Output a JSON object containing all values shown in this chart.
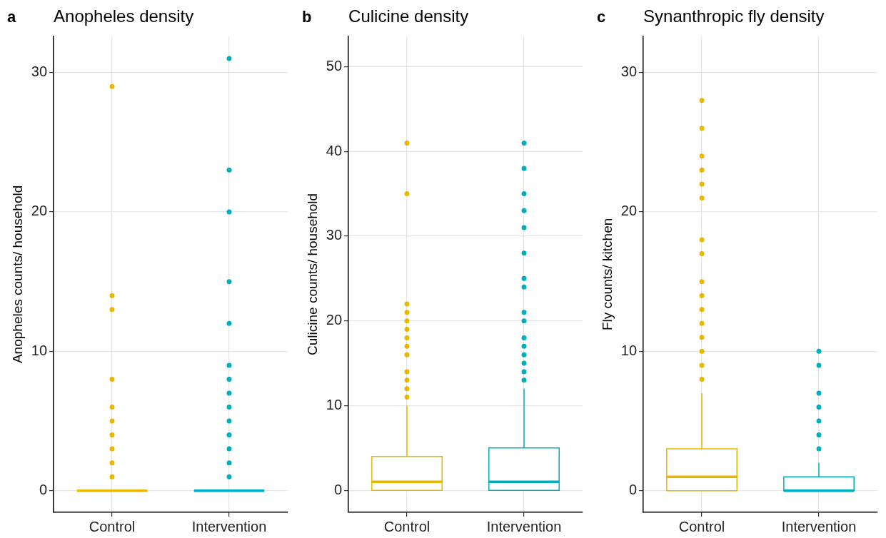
{
  "chart_data": [
    {
      "type": "box",
      "title": "Anopheles density",
      "ylabel": "Anopheles counts/ household",
      "annotations": [
        "a"
      ],
      "categories": [
        "Control",
        "Intervention"
      ],
      "colors": [
        "#e7b800",
        "#00afbb"
      ],
      "marker": "circle",
      "grid": true,
      "ylim": [
        -1.55,
        32.6
      ],
      "yticks": [
        0,
        10,
        20,
        30
      ],
      "boxes": [
        {
          "low": 0,
          "q1": 0,
          "median": 0,
          "q3": 0,
          "high": 0,
          "outliers": [
            1,
            2,
            3,
            4,
            5,
            6,
            8,
            13,
            14,
            29
          ]
        },
        {
          "low": 0,
          "q1": 0,
          "median": 0,
          "q3": 0,
          "high": 0,
          "outliers": [
            1,
            2,
            3,
            4,
            5,
            6,
            7,
            8,
            9,
            12,
            15,
            20,
            23,
            31
          ]
        }
      ]
    },
    {
      "type": "box",
      "title": "Culicine density",
      "ylabel": "Culicine counts/ household",
      "annotations": [
        "b"
      ],
      "categories": [
        "Control",
        "Intervention"
      ],
      "colors": [
        "#e7b800",
        "#00afbb"
      ],
      "marker": "circle",
      "grid": true,
      "ylim": [
        -2.6,
        53.6
      ],
      "yticks": [
        0,
        10,
        20,
        30,
        40,
        50
      ],
      "boxes": [
        {
          "low": 0,
          "q1": 0,
          "median": 1,
          "q3": 4,
          "high": 10,
          "outliers": [
            11,
            12,
            13,
            14,
            16,
            17,
            18,
            19,
            20,
            21,
            22,
            35,
            41
          ]
        },
        {
          "low": 0,
          "q1": 0,
          "median": 1,
          "q3": 5,
          "high": 12,
          "outliers": [
            13,
            14,
            15,
            16,
            17,
            18,
            20,
            21,
            24,
            25,
            28,
            31,
            33,
            35,
            38,
            41
          ]
        }
      ]
    },
    {
      "type": "box",
      "title": "Synanthropic fly density",
      "ylabel": "Fly counts/ kitchen",
      "annotations": [
        "c"
      ],
      "categories": [
        "Control",
        "Intervention"
      ],
      "colors": [
        "#e7b800",
        "#00afbb"
      ],
      "marker": "circle",
      "grid": true,
      "ylim": [
        -1.55,
        32.6
      ],
      "yticks": [
        0,
        10,
        20,
        30
      ],
      "boxes": [
        {
          "low": 0,
          "q1": 0,
          "median": 1,
          "q3": 3,
          "high": 7,
          "outliers": [
            8,
            9,
            10,
            11,
            12,
            13,
            14,
            15,
            17,
            18,
            21,
            22,
            23,
            24,
            26,
            28
          ]
        },
        {
          "low": 0,
          "q1": 0,
          "median": 0,
          "q3": 1,
          "high": 2,
          "outliers": [
            3,
            4,
            5,
            6,
            7,
            9,
            10
          ]
        }
      ]
    }
  ]
}
